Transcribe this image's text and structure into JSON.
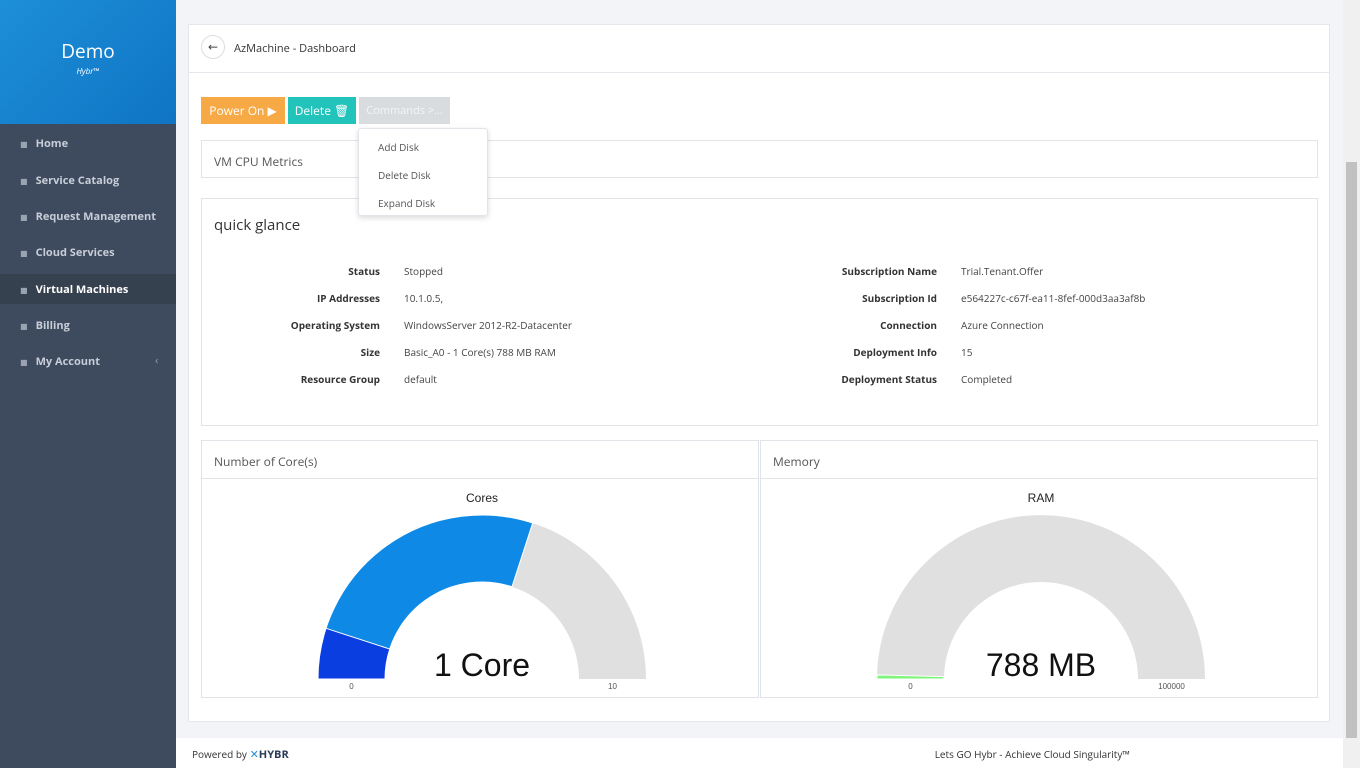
{
  "sidebar": {
    "brand": "Demo",
    "sub": "Hybr™",
    "menu": [
      "Home",
      "Service Catalog",
      "Request Management",
      "Cloud Services",
      "Virtual Machines",
      "Billing",
      "My Account"
    ]
  },
  "header": {
    "title": "AzMachine - Dashboard"
  },
  "buttons": [
    "Power On",
    "Delete",
    "Commands >..."
  ],
  "dropdown": [
    "Add Disk",
    "Delete Disk",
    "Expand Disk"
  ],
  "metrics_title": "VM CPU Metrics",
  "glance": {
    "title": "quick glance",
    "left": [
      [
        "Status",
        "Stopped"
      ],
      [
        "IP Addresses",
        "10.1.0.5,"
      ],
      [
        "Operating System",
        "WindowsServer 2012-R2-Datacenter"
      ],
      [
        "Size",
        "Basic_A0 - 1 Core(s) 788 MB RAM"
      ],
      [
        "Resource Group",
        "default"
      ]
    ],
    "right": [
      [
        "Subscription Name",
        "Trial.Tenant.Offer"
      ],
      [
        "Subscription Id",
        "e564227c-c67f-ea11-8fef-000d3aa3af8b"
      ],
      [
        "Connection",
        "Azure Connection"
      ],
      [
        "Deployment Info",
        "15"
      ],
      [
        "Deployment Status",
        "Completed"
      ]
    ]
  },
  "gauges": [
    {
      "panel": "Number of Core(s)",
      "title": "Cores",
      "label": "1 Core",
      "min": 0,
      "max": 10,
      "value": 1,
      "color": "#0a3ee0",
      "band": 6,
      "band_color": "#0e8ae6"
    },
    {
      "panel": "Memory",
      "title": "RAM",
      "label": "788 MB",
      "min": 0,
      "max": 100000,
      "value": 788,
      "color": "#7ef47a"
    }
  ],
  "footer": {
    "powered": "Powered by",
    "logo": "HYBR",
    "tagline": "Lets GO Hybr - Achieve Cloud Singularity™"
  }
}
